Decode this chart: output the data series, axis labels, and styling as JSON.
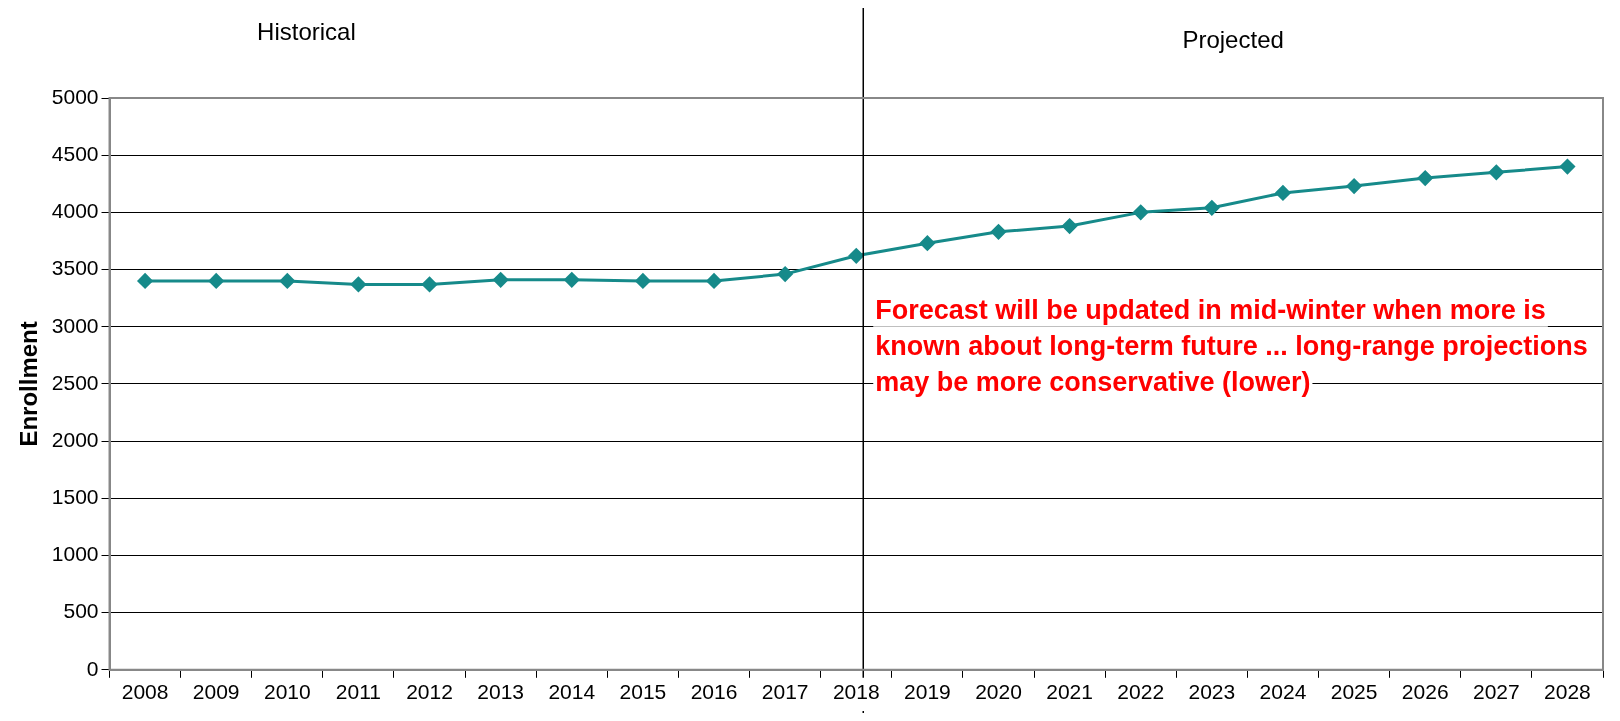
{
  "chart_data": {
    "type": "line",
    "ylabel": "Enrollment",
    "categories": [
      "2008",
      "2009",
      "2010",
      "2011",
      "2012",
      "2013",
      "2014",
      "2015",
      "2016",
      "2017",
      "2018",
      "2019",
      "2020",
      "2021",
      "2022",
      "2023",
      "2024",
      "2025",
      "2026",
      "2027",
      "2028"
    ],
    "series": [
      {
        "color": "#168a8a",
        "values": [
          3400,
          3400,
          3400,
          3370,
          3370,
          3410,
          3410,
          3400,
          3400,
          3460,
          3620,
          3730,
          3830,
          3880,
          4000,
          4040,
          4170,
          4230,
          4300,
          4350,
          4400
        ]
      }
    ],
    "ylim": [
      0,
      5000
    ],
    "yticks": [
      0,
      500,
      1000,
      1500,
      2000,
      2500,
      3000,
      3500,
      4000,
      4500,
      5000
    ],
    "grid": "y",
    "legend": false,
    "marker": "diamond",
    "line_style": "solid",
    "ref_lines": [
      {
        "axis": "x",
        "value": "2018",
        "color": "#000000"
      }
    ],
    "annotations": [
      "Historical",
      "Projected",
      "Forecast will be updated in mid-winter when more is known about long-term future ... long-range projections  may be more conservative (lower)"
    ]
  }
}
